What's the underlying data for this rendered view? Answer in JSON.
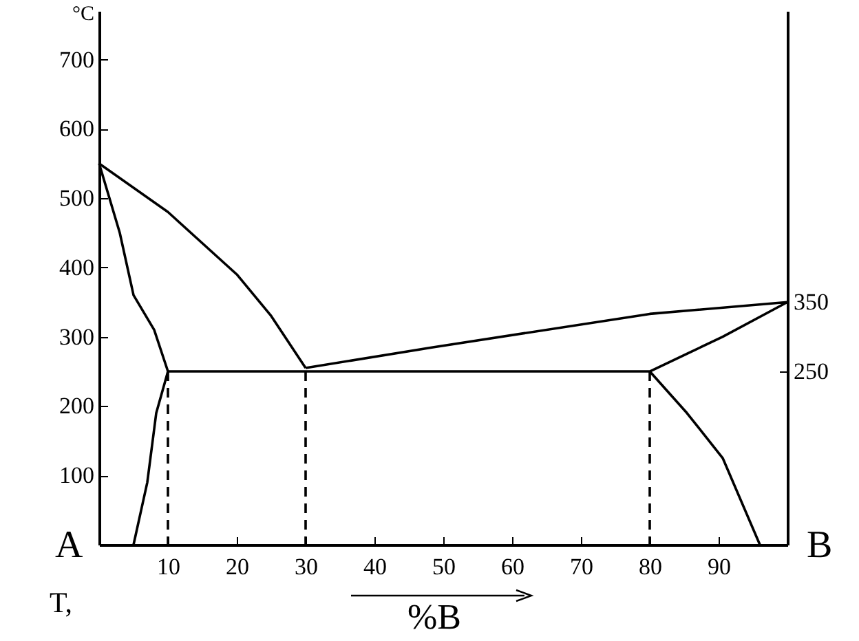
{
  "chart_data": {
    "type": "line",
    "ylabel": "°C",
    "xlabel": "%B",
    "xlim": [
      0,
      100
    ],
    "xticks": [
      10,
      20,
      30,
      40,
      50,
      60,
      70,
      80,
      90
    ],
    "ylim": [
      0,
      770
    ],
    "yticks": [
      100,
      200,
      300,
      400,
      500,
      600,
      700
    ],
    "y2lim": [
      0,
      770
    ],
    "y2ticks": [
      250,
      350
    ],
    "grid": false,
    "marker": "none",
    "series": [
      {
        "color": "#000000",
        "x": [
          0,
          10,
          20,
          25,
          30
        ],
        "values": [
          550,
          480,
          390,
          330,
          255
        ]
      },
      {
        "color": "#000000",
        "x": [
          30,
          48,
          80,
          100
        ],
        "values": [
          255,
          284,
          333,
          350
        ]
      },
      {
        "color": "#000000",
        "x": [
          0,
          3,
          5,
          8,
          10
        ],
        "values": [
          550,
          450,
          360,
          310,
          250
        ]
      },
      {
        "color": "#000000",
        "x": [
          10,
          8.3,
          7,
          5
        ],
        "values": [
          250,
          190,
          90,
          0
        ]
      },
      {
        "color": "#000000",
        "x": [
          10,
          80,
          90.6,
          100
        ],
        "values": [
          250,
          250,
          300,
          350
        ]
      },
      {
        "color": "#000000",
        "x": [
          80,
          85.4,
          90.6,
          96
        ],
        "values": [
          250,
          190,
          125,
          0
        ]
      },
      {
        "color": "#000000",
        "x": [
          10,
          10
        ],
        "values": [
          250,
          0
        ],
        "line_style": "dashed"
      },
      {
        "color": "#000000",
        "x": [
          30,
          30
        ],
        "values": [
          250,
          0
        ],
        "line_style": "dashed"
      },
      {
        "color": "#000000",
        "x": [
          80,
          80
        ],
        "values": [
          250,
          0
        ],
        "line_style": "dashed"
      }
    ],
    "annotations": [
      "A",
      "B",
      "T,"
    ]
  }
}
